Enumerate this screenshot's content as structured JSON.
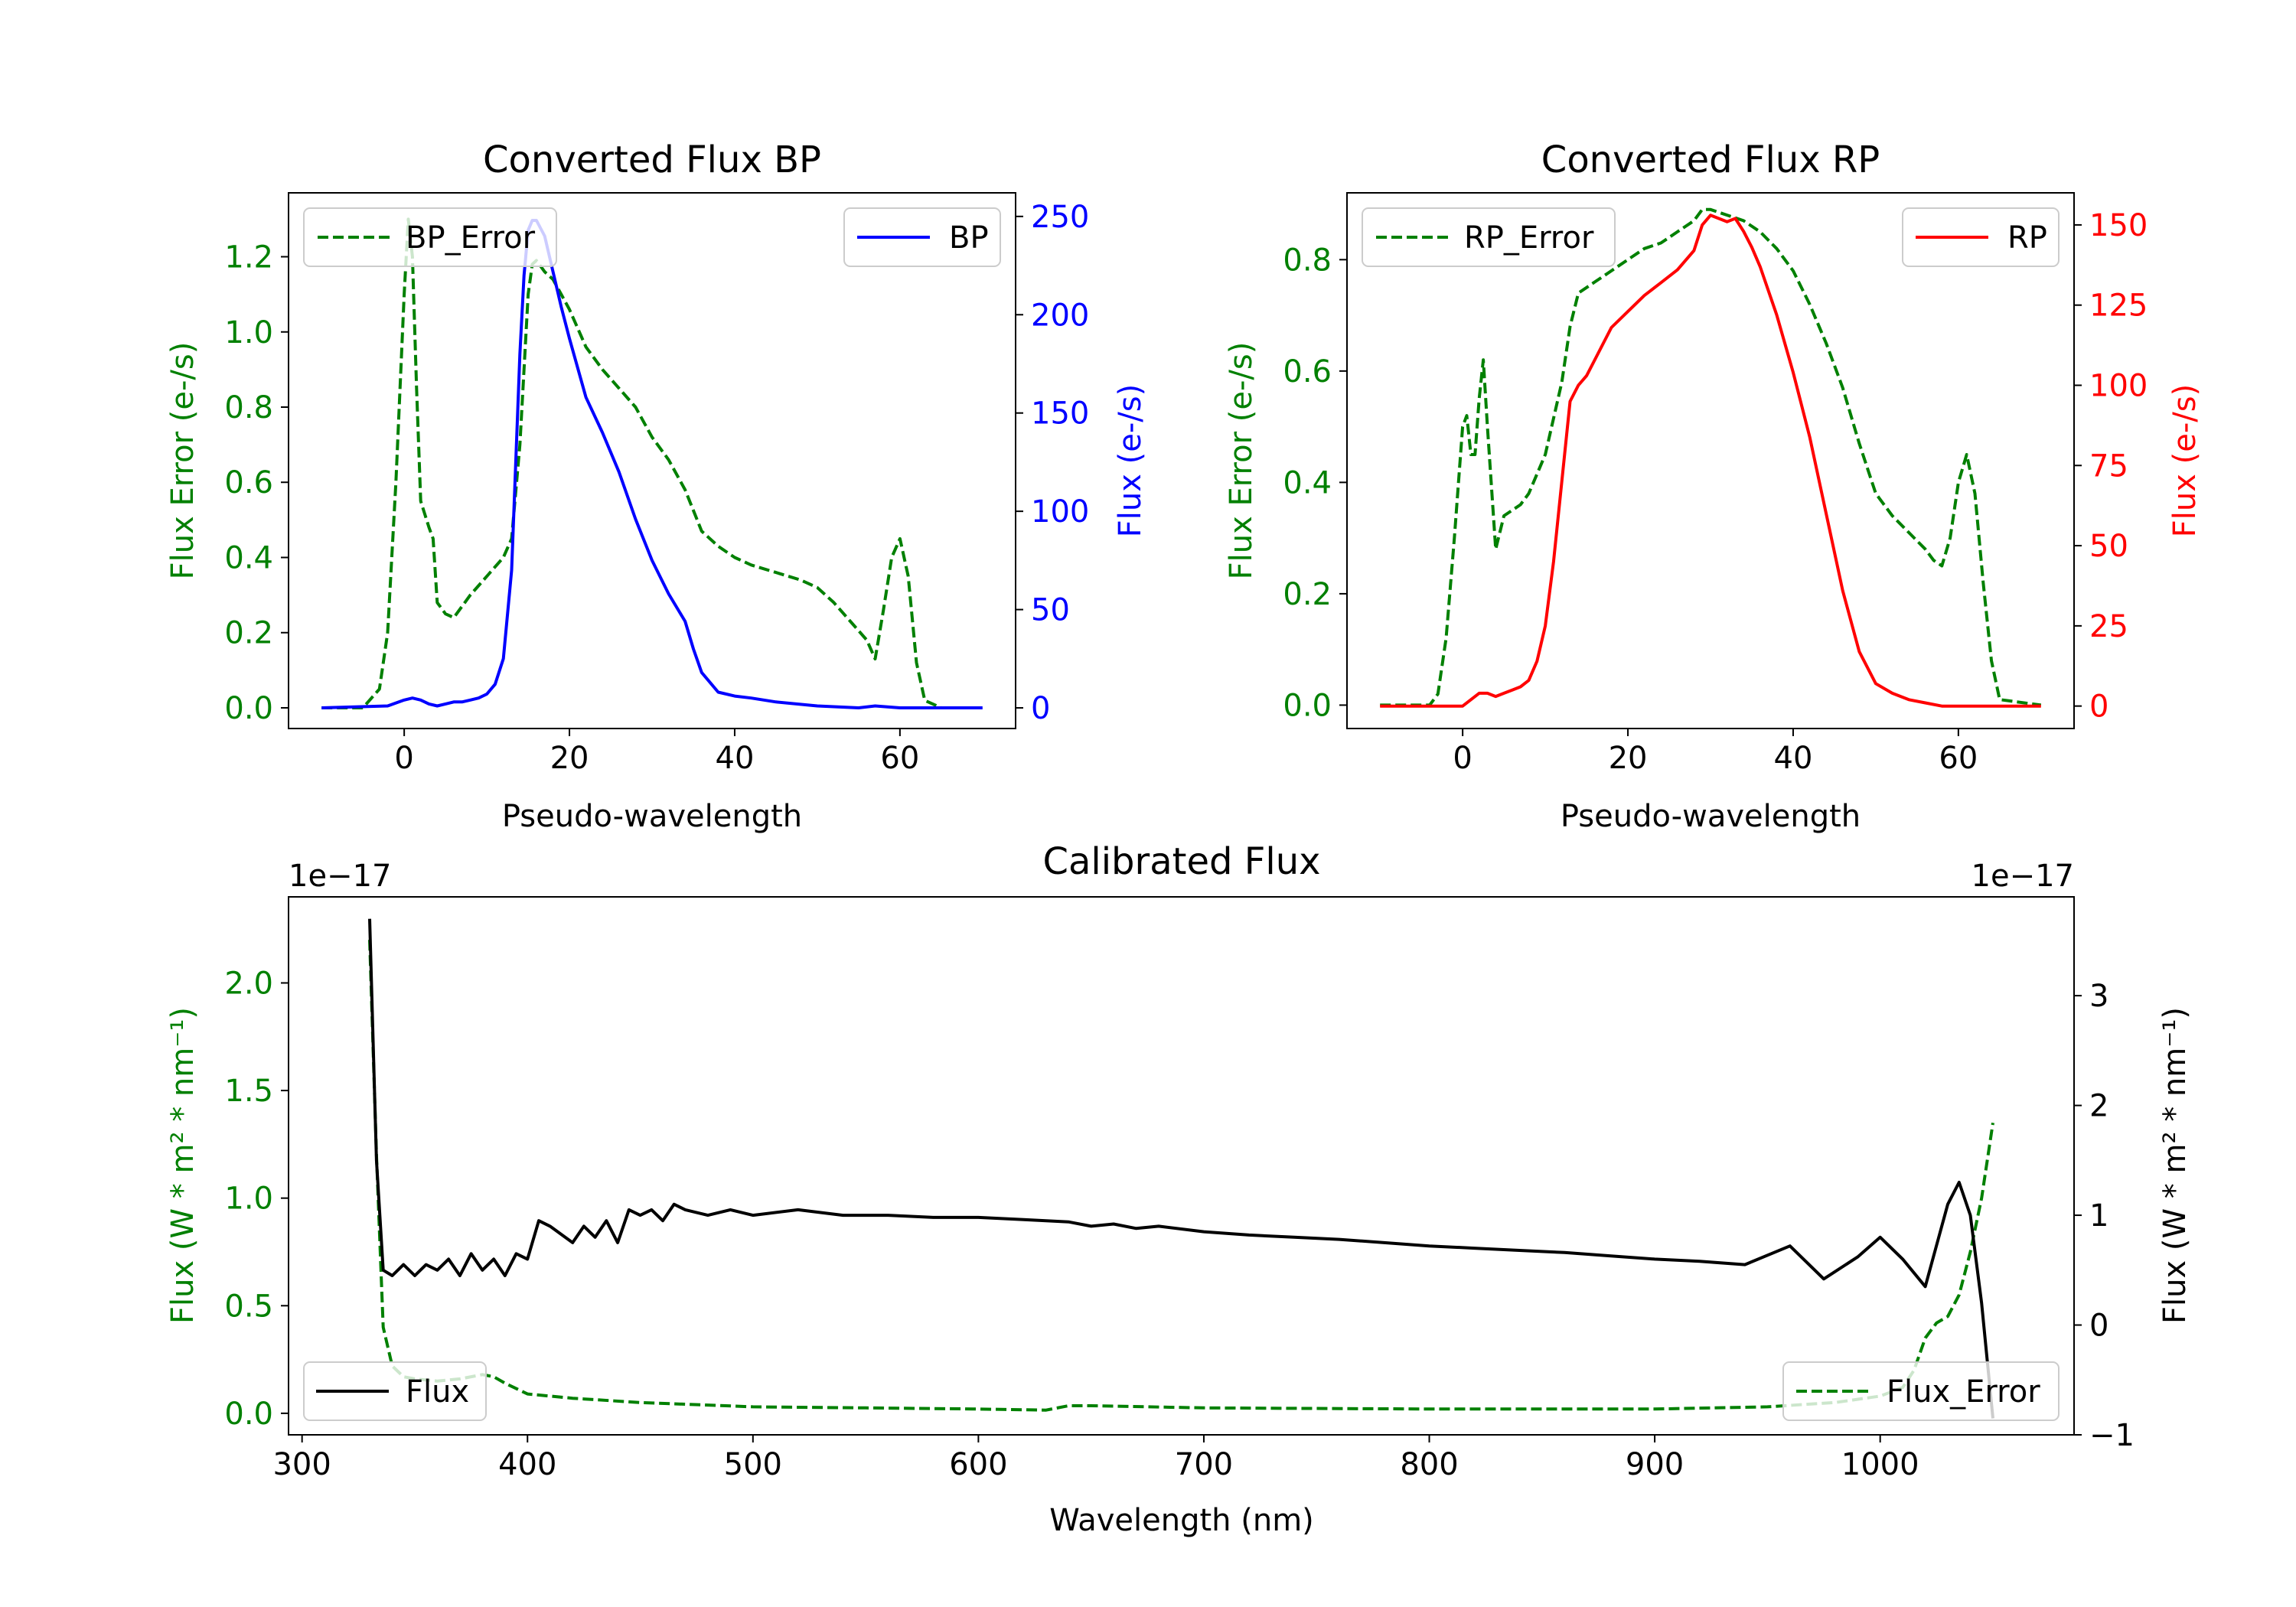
{
  "chart_data": [
    {
      "type": "line",
      "title": "Converted Flux BP",
      "xlabel": "Pseudo-wavelength",
      "ylabel_left": "Flux Error (e-/s)",
      "ylabel_right": "Flux (e-/s)",
      "xlim": [
        -14,
        74
      ],
      "ylim_left": [
        -0.055,
        1.37
      ],
      "ylim_right": [
        -10.5,
        262
      ],
      "x_ticks": [
        "0",
        "20",
        "40",
        "60"
      ],
      "y_ticks_left": [
        "0.0",
        "0.2",
        "0.4",
        "0.6",
        "0.8",
        "1.0",
        "1.2"
      ],
      "y_ticks_right": [
        "0",
        "50",
        "100",
        "150",
        "200",
        "250"
      ],
      "colors": {
        "left_axis": "#008000",
        "right_axis": "#0000ff"
      },
      "series": [
        {
          "name": "BP_Error",
          "axis": "left",
          "style": "dashed",
          "color": "#008000",
          "x": [
            -10,
            -5,
            -3,
            -2,
            -1,
            0,
            0.5,
            1,
            1.5,
            2,
            3,
            3.5,
            4,
            5,
            6,
            7,
            8,
            10,
            12,
            13,
            14,
            15,
            15.5,
            16,
            17,
            18,
            19,
            20,
            22,
            24,
            26,
            28,
            30,
            32,
            34,
            36,
            38,
            40,
            42,
            45,
            48,
            50,
            52,
            54,
            56,
            57,
            58,
            59,
            60,
            61,
            62,
            63,
            65,
            70
          ],
          "y": [
            0.0,
            0.0,
            0.05,
            0.2,
            0.6,
            1.1,
            1.3,
            1.2,
            0.85,
            0.55,
            0.48,
            0.45,
            0.28,
            0.25,
            0.24,
            0.27,
            0.3,
            0.35,
            0.4,
            0.45,
            0.7,
            1.1,
            1.18,
            1.19,
            1.16,
            1.14,
            1.1,
            1.06,
            0.96,
            0.9,
            0.85,
            0.8,
            0.72,
            0.66,
            0.58,
            0.47,
            0.43,
            0.4,
            0.38,
            0.36,
            0.34,
            0.32,
            0.28,
            0.23,
            0.18,
            0.13,
            0.26,
            0.4,
            0.45,
            0.35,
            0.12,
            0.02,
            0.0,
            0.0
          ]
        },
        {
          "name": "BP",
          "axis": "right",
          "style": "solid",
          "color": "#0000ff",
          "x": [
            -10,
            -2,
            0,
            1,
            2,
            3,
            4,
            5,
            6,
            7,
            8,
            9,
            10,
            11,
            12,
            13,
            14,
            14.5,
            15,
            15.5,
            16,
            17,
            18,
            19,
            20,
            22,
            24,
            26,
            28,
            30,
            32,
            34,
            35,
            36,
            38,
            40,
            42,
            45,
            50,
            55,
            57,
            60,
            65,
            70
          ],
          "y": [
            0,
            1,
            4,
            5,
            4,
            2,
            1,
            2,
            3,
            3,
            4,
            5,
            7,
            12,
            25,
            70,
            180,
            220,
            243,
            248,
            248,
            240,
            222,
            204,
            188,
            158,
            140,
            120,
            96,
            75,
            58,
            44,
            30,
            18,
            8,
            6,
            5,
            3,
            1,
            0,
            1,
            0,
            0,
            0
          ]
        }
      ],
      "legend": [
        "BP_Error",
        "BP"
      ]
    },
    {
      "type": "line",
      "title": "Converted Flux RP",
      "xlabel": "Pseudo-wavelength",
      "ylabel_left": "Flux Error (e-/s)",
      "ylabel_right": "Flux (e-/s)",
      "xlim": [
        -14,
        74
      ],
      "ylim_left": [
        -0.042,
        0.92
      ],
      "ylim_right": [
        -7,
        160
      ],
      "x_ticks": [
        "0",
        "20",
        "40",
        "60"
      ],
      "y_ticks_left": [
        "0.0",
        "0.2",
        "0.4",
        "0.6",
        "0.8"
      ],
      "y_ticks_right": [
        "0",
        "25",
        "50",
        "75",
        "100",
        "125",
        "150"
      ],
      "colors": {
        "left_axis": "#008000",
        "right_axis": "#ff0000"
      },
      "series": [
        {
          "name": "RP_Error",
          "axis": "left",
          "style": "dashed",
          "color": "#008000",
          "x": [
            -10,
            -5,
            -4,
            -3,
            -2,
            -1,
            0,
            0.5,
            1,
            1.5,
            2,
            2.5,
            3,
            4,
            5,
            6,
            7,
            8,
            10,
            12,
            13,
            14,
            16,
            18,
            20,
            22,
            24,
            26,
            28,
            29,
            30,
            32,
            34,
            36,
            38,
            40,
            42,
            44,
            46,
            48,
            50,
            52,
            54,
            56,
            57,
            58,
            59,
            60,
            61,
            62,
            63,
            64,
            65,
            70
          ],
          "y": [
            0.0,
            0.0,
            0.0,
            0.02,
            0.12,
            0.3,
            0.5,
            0.52,
            0.45,
            0.45,
            0.55,
            0.62,
            0.5,
            0.28,
            0.34,
            0.35,
            0.36,
            0.38,
            0.45,
            0.58,
            0.68,
            0.74,
            0.76,
            0.78,
            0.8,
            0.82,
            0.83,
            0.85,
            0.87,
            0.89,
            0.89,
            0.88,
            0.87,
            0.85,
            0.82,
            0.78,
            0.72,
            0.65,
            0.57,
            0.47,
            0.38,
            0.34,
            0.31,
            0.28,
            0.26,
            0.25,
            0.3,
            0.4,
            0.45,
            0.38,
            0.22,
            0.08,
            0.01,
            0.0
          ]
        },
        {
          "name": "RP",
          "axis": "right",
          "style": "solid",
          "color": "#ff0000",
          "x": [
            -10,
            -3,
            0,
            1,
            2,
            3,
            4,
            5,
            6,
            7,
            8,
            9,
            10,
            11,
            12,
            13,
            14,
            15,
            16,
            17,
            18,
            20,
            22,
            24,
            26,
            28,
            29,
            30,
            32,
            33,
            34,
            35,
            36,
            38,
            40,
            42,
            44,
            46,
            48,
            50,
            52,
            54,
            56,
            58,
            60,
            70
          ],
          "y": [
            0,
            0,
            0,
            2,
            4,
            4,
            3,
            4,
            5,
            6,
            8,
            14,
            25,
            45,
            70,
            95,
            100,
            103,
            108,
            113,
            118,
            123,
            128,
            132,
            136,
            142,
            150,
            153,
            151,
            152,
            148,
            143,
            137,
            122,
            104,
            84,
            60,
            36,
            17,
            7,
            4,
            2,
            1,
            0,
            0,
            0
          ]
        }
      ],
      "legend": [
        "RP_Error",
        "RP"
      ]
    },
    {
      "type": "line",
      "title": "Calibrated Flux",
      "xlabel": "Wavelength (nm)",
      "ylabel_left": "Flux (W * m² * nm⁻¹)",
      "ylabel_right": "Flux (W * m² * nm⁻¹)",
      "offset_left": "1e−17",
      "offset_right": "1e−17",
      "xlim": [
        294,
        1086
      ],
      "ylim_left": [
        -0.1,
        2.4
      ],
      "ylim_right": [
        -1.0,
        3.9
      ],
      "x_ticks": [
        "300",
        "400",
        "500",
        "600",
        "700",
        "800",
        "900",
        "1000"
      ],
      "y_ticks_left": [
        "0.0",
        "0.5",
        "1.0",
        "1.5",
        "2.0"
      ],
      "y_ticks_right": [
        "−1",
        "0",
        "1",
        "2",
        "3"
      ],
      "colors": {
        "left_axis": "#008000",
        "right_axis": "#000000"
      },
      "series": [
        {
          "name": "Flux_Error",
          "axis": "left",
          "style": "dashed",
          "color": "#008000",
          "x": [
            330,
            333,
            336,
            340,
            345,
            350,
            360,
            370,
            380,
            385,
            390,
            400,
            420,
            450,
            500,
            550,
            600,
            630,
            640,
            650,
            700,
            800,
            900,
            950,
            980,
            1000,
            1010,
            1015,
            1020,
            1025,
            1030,
            1035,
            1040,
            1045,
            1050
          ],
          "y": [
            2.2,
            1.2,
            0.4,
            0.22,
            0.17,
            0.16,
            0.15,
            0.16,
            0.18,
            0.17,
            0.14,
            0.09,
            0.07,
            0.05,
            0.03,
            0.025,
            0.02,
            0.015,
            0.035,
            0.035,
            0.025,
            0.02,
            0.02,
            0.03,
            0.05,
            0.08,
            0.12,
            0.2,
            0.35,
            0.42,
            0.45,
            0.55,
            0.75,
            1.0,
            1.35
          ]
        },
        {
          "name": "Flux",
          "axis": "right",
          "style": "solid",
          "color": "#000000",
          "x": [
            330,
            333,
            336,
            340,
            345,
            350,
            355,
            360,
            365,
            370,
            375,
            380,
            385,
            390,
            395,
            400,
            405,
            410,
            420,
            425,
            430,
            435,
            440,
            445,
            450,
            455,
            460,
            465,
            470,
            480,
            490,
            500,
            520,
            540,
            560,
            580,
            600,
            620,
            640,
            650,
            660,
            670,
            680,
            700,
            720,
            740,
            760,
            780,
            800,
            820,
            840,
            860,
            880,
            900,
            920,
            940,
            960,
            975,
            990,
            1000,
            1010,
            1020,
            1030,
            1035,
            1040,
            1045,
            1050
          ],
          "y": [
            3.7,
            1.5,
            0.5,
            0.45,
            0.55,
            0.45,
            0.55,
            0.5,
            0.6,
            0.45,
            0.65,
            0.5,
            0.6,
            0.45,
            0.65,
            0.6,
            0.95,
            0.9,
            0.75,
            0.9,
            0.8,
            0.95,
            0.75,
            1.05,
            1.0,
            1.05,
            0.95,
            1.1,
            1.05,
            1.0,
            1.05,
            1.0,
            1.05,
            1.0,
            1.0,
            0.98,
            0.98,
            0.96,
            0.94,
            0.9,
            0.92,
            0.88,
            0.9,
            0.85,
            0.82,
            0.8,
            0.78,
            0.75,
            0.72,
            0.7,
            0.68,
            0.66,
            0.63,
            0.6,
            0.58,
            0.55,
            0.72,
            0.42,
            0.62,
            0.8,
            0.6,
            0.35,
            1.1,
            1.3,
            1.0,
            0.2,
            -0.85
          ]
        }
      ],
      "legend": [
        "Flux",
        "Flux_Error"
      ]
    }
  ]
}
